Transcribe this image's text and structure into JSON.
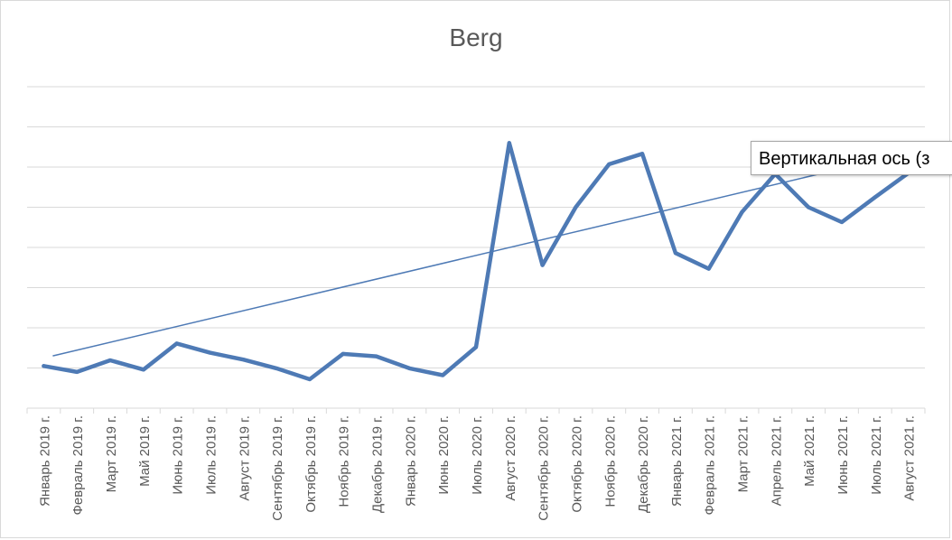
{
  "chart_data": {
    "type": "line",
    "title": "Berg",
    "xlabel": "",
    "ylabel": "",
    "categories": [
      "Январь 2019 г.",
      "Февраль 2019 г.",
      "Март 2019 г.",
      "Май 2019 г.",
      "Июнь 2019 г.",
      "Июль 2019 г.",
      "Август 2019 г.",
      "Сентябрь 2019 г.",
      "Октябрь 2019 г.",
      "Ноябрь 2019 г.",
      "Декабрь 2019 г.",
      "Январь 2020 г.",
      "Июнь 2020 г.",
      "Июль 2020 г.",
      "Август 2020 г.",
      "Сентябрь 2020 г.",
      "Октябрь 2020 г.",
      "Ноябрь 2020 г.",
      "Декабрь 2020 г.",
      "Январь 2021 г.",
      "Февраль 2021 г.",
      "Март 2021 г.",
      "Апрель 2021 г.",
      "Май 2021 г.",
      "Июнь 2021 г.",
      "Июль 2021 г.",
      "Август 2021 г."
    ],
    "series": [
      {
        "values": [
          0.25,
          0.1,
          0.39,
          0.16,
          0.81,
          0.58,
          0.41,
          0.19,
          -0.08,
          0.55,
          0.49,
          0.19,
          0.02,
          0.72,
          5.8,
          2.76,
          4.2,
          5.27,
          5.53,
          3.06,
          2.67,
          4.08,
          5.03,
          4.2,
          3.83,
          4.45,
          5.05
        ],
        "color": "#4e7ab5"
      }
    ],
    "trendline": {
      "type": "linear",
      "start": 0.5,
      "end": 5.5,
      "color": "#4e7ab5"
    },
    "ylim": [
      -0.8,
      7.2
    ],
    "y_gridlines": [
      -0.8,
      0.2,
      1.2,
      2.2,
      3.2,
      4.2,
      5.2,
      6.2,
      7.2
    ],
    "y_tick_labels_visible": false,
    "grid": true,
    "legend": "none"
  },
  "tooltip": {
    "text": "Вертикальная ось (з"
  }
}
